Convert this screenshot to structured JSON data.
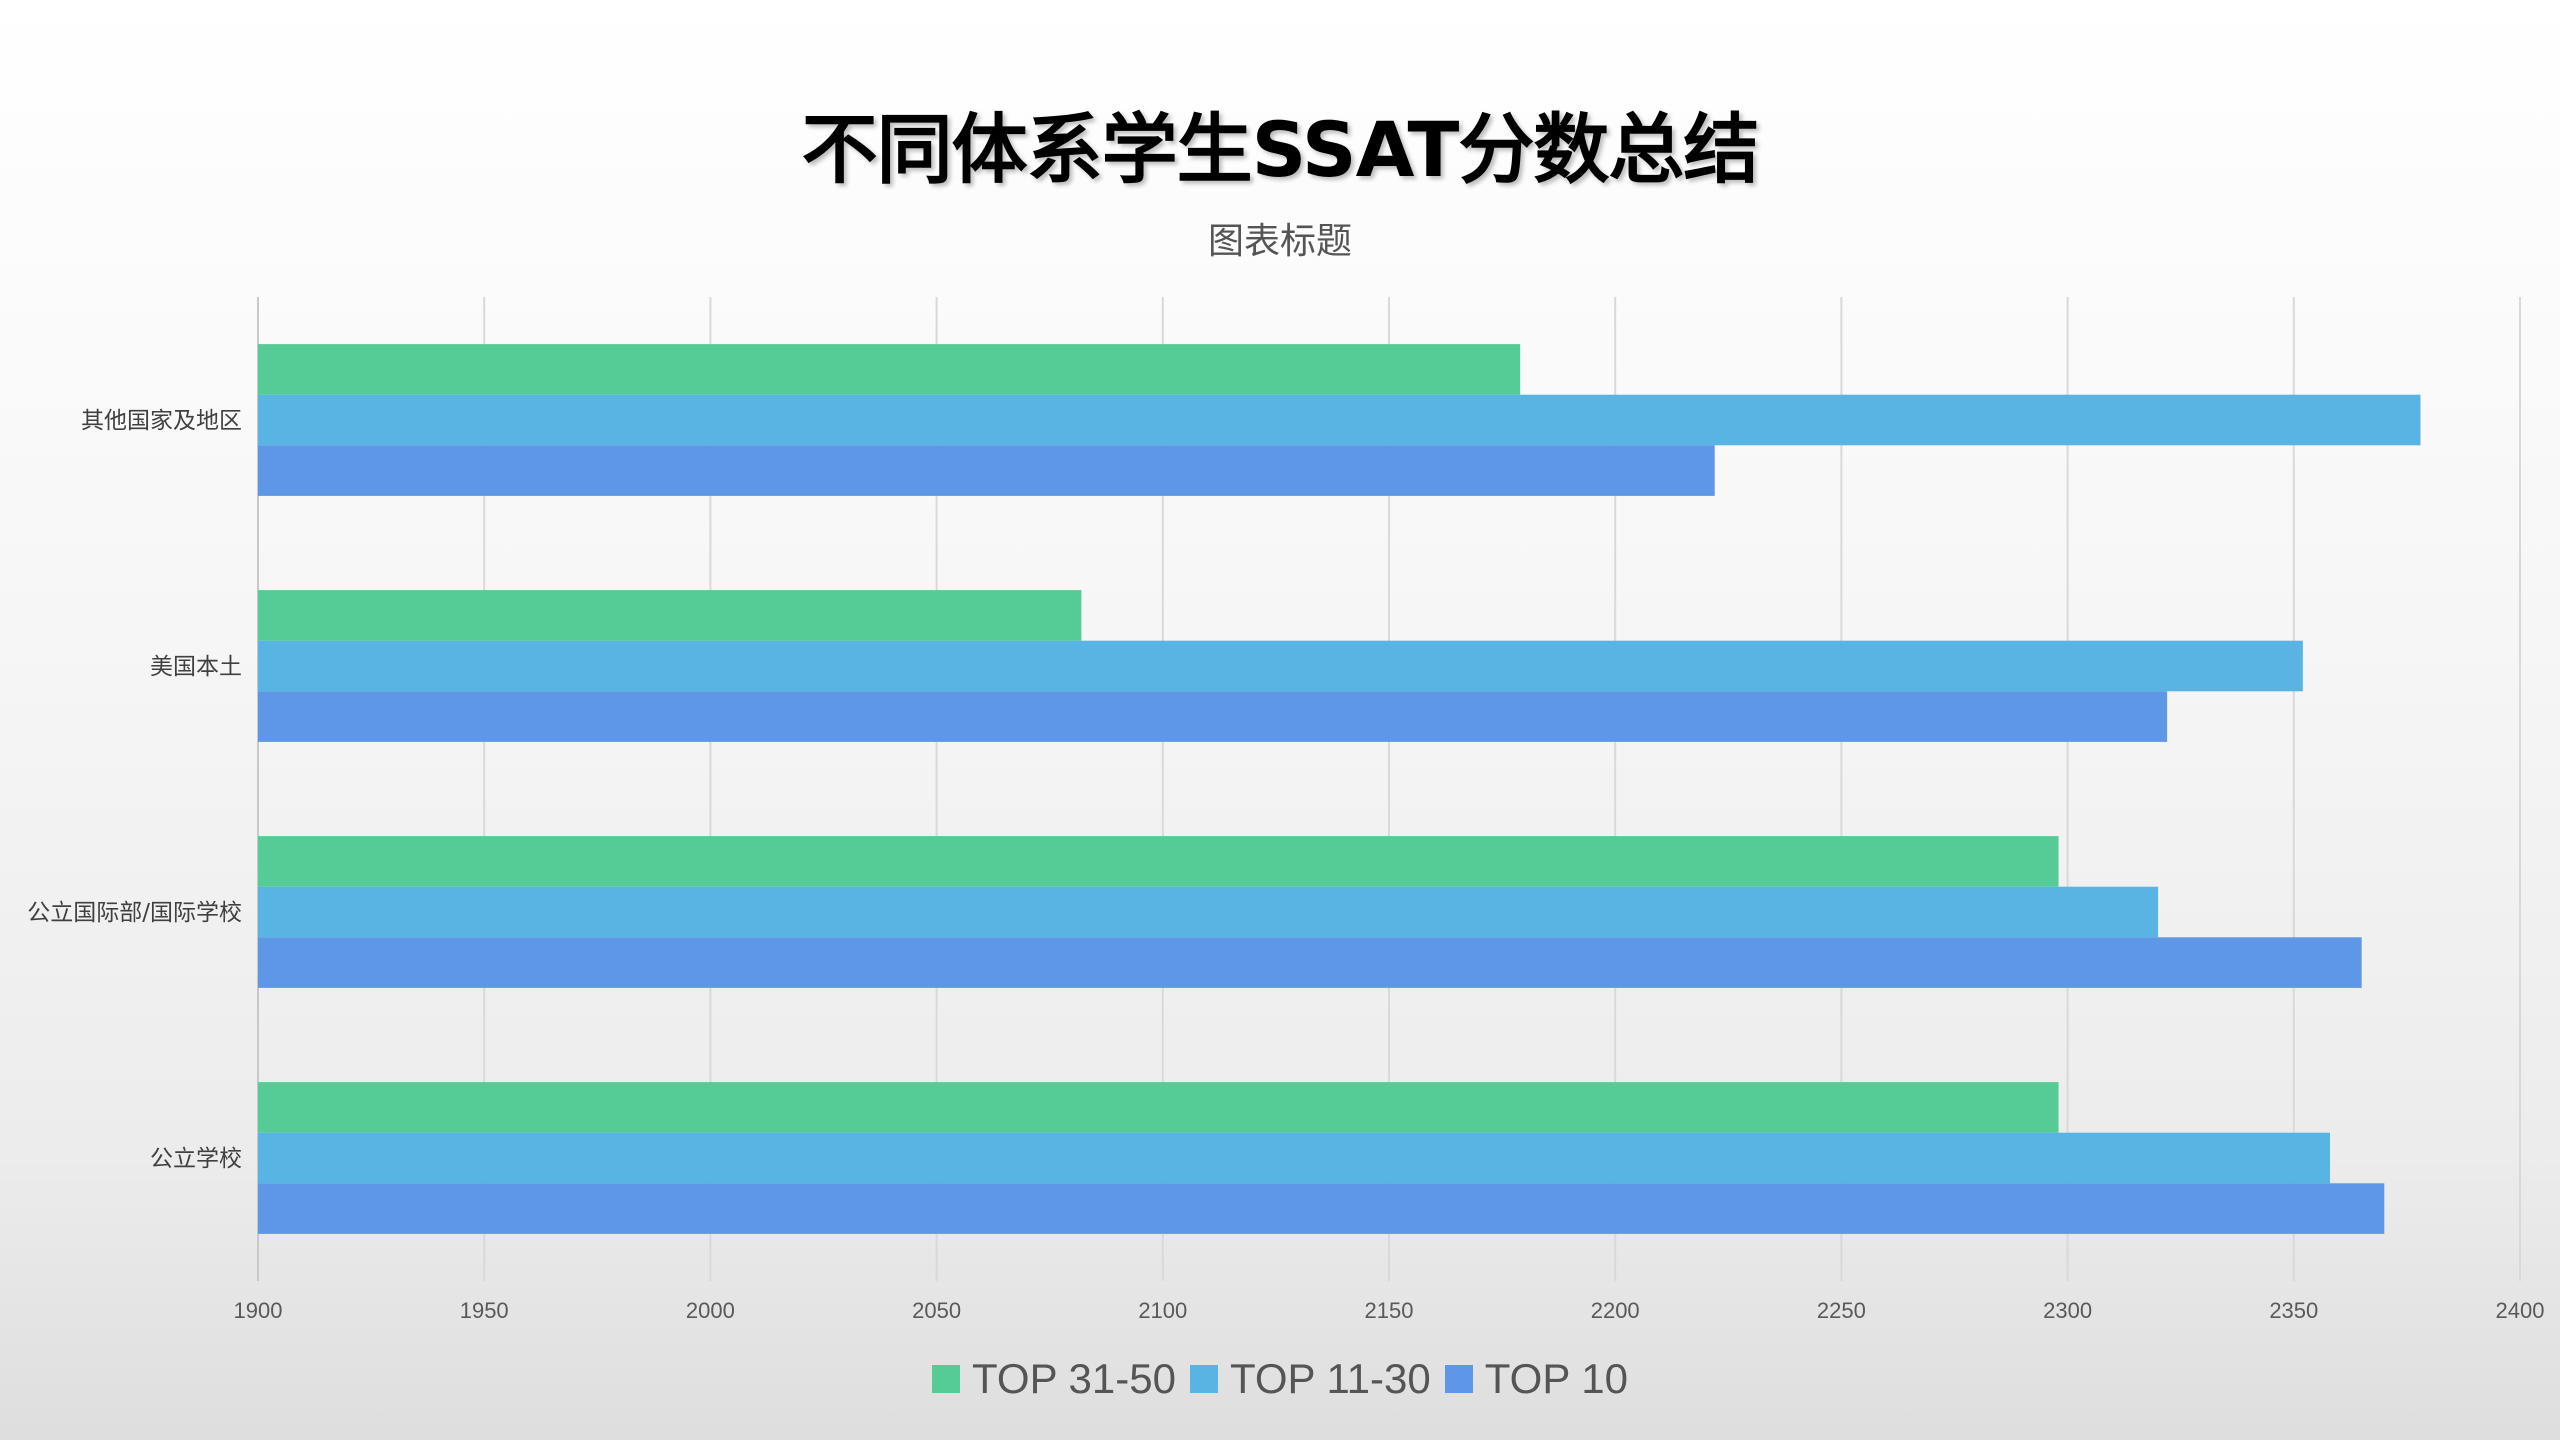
{
  "chart_data": {
    "type": "bar",
    "orientation": "horizontal",
    "title": "不同体系学生SSAT分数总结",
    "subtitle": "图表标题",
    "categories": [
      "其他国家及地区",
      "美国本土",
      "公立国际部/国际学校",
      "公立学校"
    ],
    "series": [
      {
        "name": "TOP 31-50",
        "color": "#55cc95",
        "values": [
          2179,
          2082,
          2298,
          2298
        ]
      },
      {
        "name": "TOP 11-30",
        "color": "#58b5e3",
        "values": [
          2378,
          2352,
          2320,
          2358
        ]
      },
      {
        "name": "TOP 10",
        "color": "#5e97e6",
        "values": [
          2222,
          2322,
          2365,
          2370
        ]
      }
    ],
    "xlim": [
      1900,
      2400
    ],
    "x_ticks": [
      "1900",
      "1950",
      "2000",
      "2050",
      "2100",
      "2150",
      "2200",
      "2250",
      "2300",
      "2350",
      "2400"
    ],
    "grid": true,
    "legend_position": "bottom",
    "xlabel": "",
    "ylabel": ""
  }
}
